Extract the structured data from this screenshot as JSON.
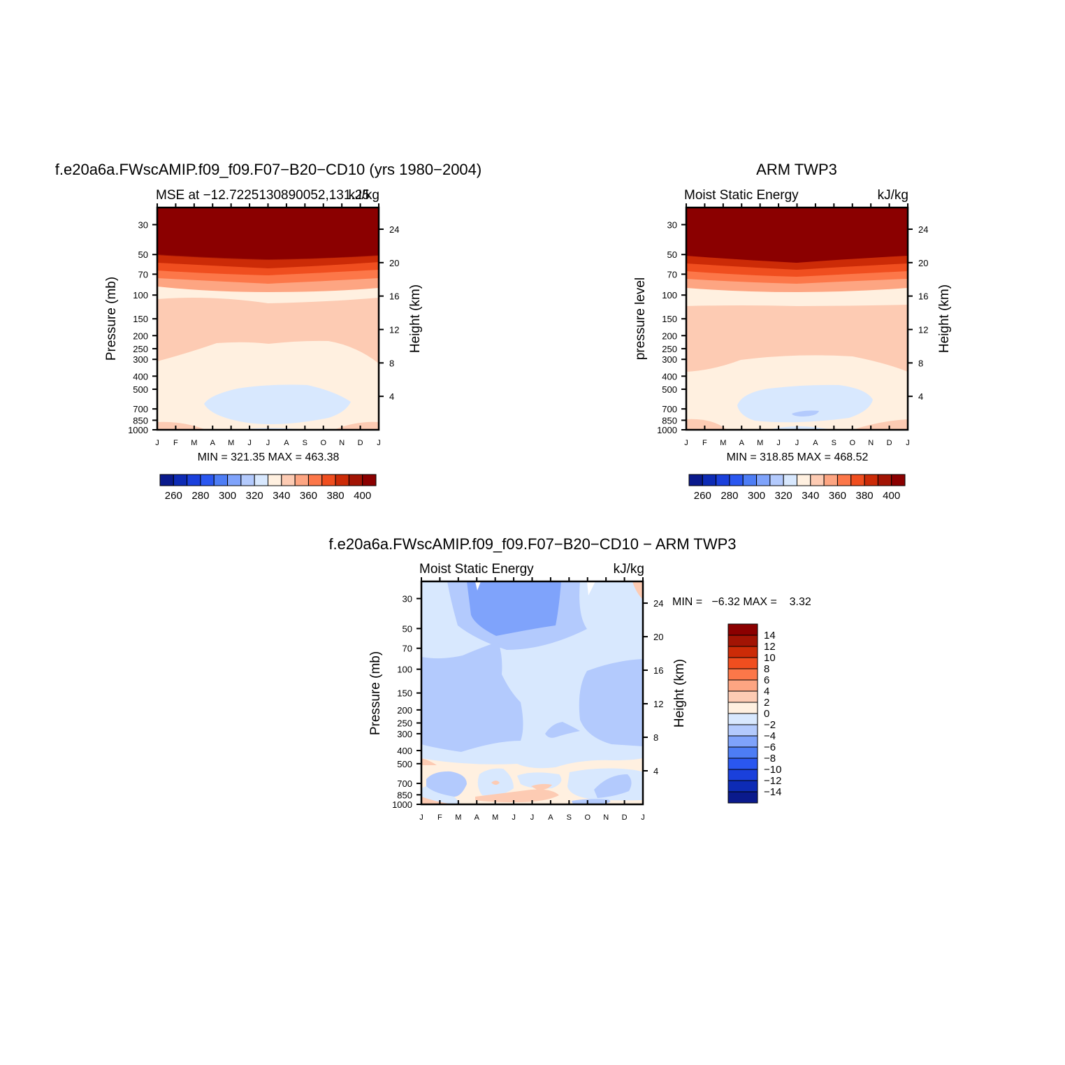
{
  "palette": {
    "levels_abs": [
      260,
      270,
      280,
      290,
      300,
      310,
      320,
      330,
      340,
      350,
      360,
      370,
      380,
      390,
      400
    ],
    "colors": [
      "#0a1a8c",
      "#0d2bb5",
      "#1a40dc",
      "#2a57f0",
      "#4d7df5",
      "#7fa3fb",
      "#b3cafd",
      "#d8e8fe",
      "#fff0e0",
      "#fdcbb3",
      "#fda582",
      "#fc7749",
      "#f04e1f",
      "#cc2b07",
      "#a21404",
      "#8b0000"
    ]
  },
  "panels": [
    {
      "title": "f.e20a6a.FWscAMIP.f09_f09.F07−B20−CD10 (yrs 1980−2004)",
      "subtitle_left": "MSE at −12.7225130890052,131.25",
      "subtitle_right": "kJ/kg",
      "ylabel_left": "Pressure (mb)",
      "ylabel_right": "Height (km)",
      "stats": "MIN = 321.35 MAX = 463.38",
      "colorbar_labels": [
        "260",
        "280",
        "300",
        "320",
        "340",
        "360",
        "380",
        "400"
      ]
    },
    {
      "title": "ARM TWP3",
      "subtitle_left": "Moist Static Energy",
      "subtitle_right": "kJ/kg",
      "ylabel_left": "pressure level",
      "ylabel_right": "Height (km)",
      "stats": "MIN = 318.85 MAX = 468.52",
      "colorbar_labels": [
        "260",
        "280",
        "300",
        "320",
        "340",
        "360",
        "380",
        "400"
      ]
    },
    {
      "title": "f.e20a6a.FWscAMIP.f09_f09.F07−B20−CD10 − ARM TWP3",
      "subtitle_left": "Moist Static Energy",
      "subtitle_right": "kJ/kg",
      "ylabel_left": "Pressure (mb)",
      "ylabel_right": "Height (km)",
      "stats": "MIN =   −6.32 MAX =    3.32",
      "colorbar_labels": [
        "14",
        "12",
        "10",
        "8",
        "6",
        "4",
        "2",
        "0",
        "−2",
        "−4",
        "−6",
        "−8",
        "−10",
        "−12",
        "−14"
      ]
    }
  ],
  "chart_data": [
    {
      "type": "heatmap",
      "title": "f.e20a6a.FWscAMIP.f09_f09.F07−B20−CD10 (yrs 1980−2004)",
      "subtitle": "MSE at −12.7225130890052,131.25",
      "units": "kJ/kg",
      "x": [
        "J",
        "F",
        "M",
        "A",
        "M",
        "J",
        "J",
        "A",
        "S",
        "O",
        "N",
        "D",
        "J"
      ],
      "y_pressure_mb": [
        "30",
        "50",
        "70",
        "100",
        "150",
        "200",
        "250",
        "300",
        "400",
        "500",
        "700",
        "850",
        "1000"
      ],
      "y_height_km": [
        "24",
        "20",
        "16",
        "12",
        "8",
        "4"
      ],
      "ylabel": "Pressure (mb)",
      "ylabel_right": "Height (km)",
      "min": 321.35,
      "max": 463.38,
      "levels": [
        260,
        270,
        280,
        290,
        300,
        310,
        320,
        330,
        340,
        350,
        360,
        370,
        380,
        390,
        400
      ],
      "colorbar_ticks": [
        260,
        280,
        300,
        320,
        340,
        360,
        380,
        400
      ]
    },
    {
      "type": "heatmap",
      "title": "ARM TWP3",
      "subtitle": "Moist Static Energy",
      "units": "kJ/kg",
      "x": [
        "J",
        "F",
        "M",
        "A",
        "M",
        "J",
        "J",
        "A",
        "S",
        "O",
        "N",
        "D",
        "J"
      ],
      "y_pressure_mb": [
        "30",
        "50",
        "70",
        "100",
        "150",
        "200",
        "250",
        "300",
        "400",
        "500",
        "700",
        "850",
        "1000"
      ],
      "y_height_km": [
        "24",
        "20",
        "16",
        "12",
        "8",
        "4"
      ],
      "ylabel": "pressure level",
      "ylabel_right": "Height (km)",
      "min": 318.85,
      "max": 468.52,
      "levels": [
        260,
        270,
        280,
        290,
        300,
        310,
        320,
        330,
        340,
        350,
        360,
        370,
        380,
        390,
        400
      ],
      "colorbar_ticks": [
        260,
        280,
        300,
        320,
        340,
        360,
        380,
        400
      ]
    },
    {
      "type": "heatmap",
      "title": "f.e20a6a.FWscAMIP.f09_f09.F07−B20−CD10 − ARM TWP3",
      "subtitle": "Moist Static Energy",
      "units": "kJ/kg",
      "x": [
        "J",
        "F",
        "M",
        "A",
        "M",
        "J",
        "J",
        "A",
        "S",
        "O",
        "N",
        "D",
        "J"
      ],
      "y_pressure_mb": [
        "30",
        "50",
        "70",
        "100",
        "150",
        "200",
        "250",
        "300",
        "400",
        "500",
        "700",
        "850",
        "1000"
      ],
      "y_height_km": [
        "24",
        "20",
        "16",
        "12",
        "8",
        "4"
      ],
      "ylabel": "Pressure (mb)",
      "ylabel_right": "Height (km)",
      "min": -6.32,
      "max": 3.32,
      "levels": [
        -14,
        -12,
        -10,
        -8,
        -6,
        -4,
        -2,
        0,
        2,
        4,
        6,
        8,
        10,
        12,
        14
      ],
      "colorbar_ticks": [
        14,
        12,
        10,
        8,
        6,
        4,
        2,
        0,
        -2,
        -4,
        -6,
        -8,
        -10,
        -12,
        -14
      ]
    }
  ]
}
